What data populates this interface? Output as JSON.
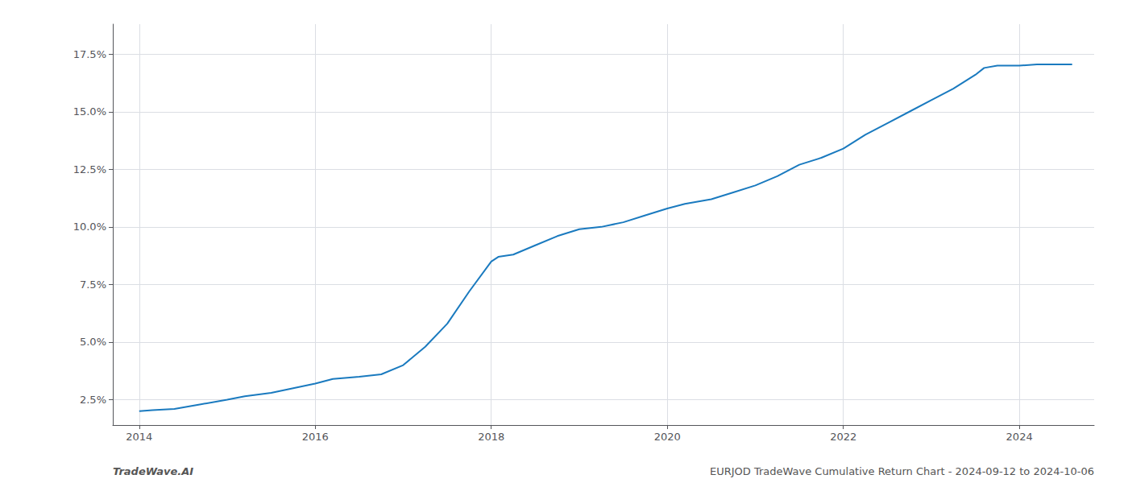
{
  "chart_data": {
    "type": "line",
    "x": [
      2014.0,
      2014.15,
      2014.4,
      2014.7,
      2015.0,
      2015.2,
      2015.5,
      2015.75,
      2016.0,
      2016.2,
      2016.5,
      2016.75,
      2017.0,
      2017.25,
      2017.5,
      2017.75,
      2018.0,
      2018.08,
      2018.25,
      2018.5,
      2018.75,
      2019.0,
      2019.25,
      2019.5,
      2019.75,
      2020.0,
      2020.2,
      2020.5,
      2020.75,
      2021.0,
      2021.25,
      2021.5,
      2021.75,
      2022.0,
      2022.25,
      2022.5,
      2022.75,
      2023.0,
      2023.25,
      2023.5,
      2023.6,
      2023.75,
      2024.0,
      2024.2,
      2024.4,
      2024.6
    ],
    "values": [
      2.0,
      2.05,
      2.1,
      2.3,
      2.5,
      2.65,
      2.8,
      3.0,
      3.2,
      3.4,
      3.5,
      3.6,
      4.0,
      4.8,
      5.8,
      7.2,
      8.5,
      8.7,
      8.8,
      9.2,
      9.6,
      9.9,
      10.0,
      10.2,
      10.5,
      10.8,
      11.0,
      11.2,
      11.5,
      11.8,
      12.2,
      12.7,
      13.0,
      13.4,
      14.0,
      14.5,
      15.0,
      15.5,
      16.0,
      16.6,
      16.9,
      17.0,
      17.0,
      17.05,
      17.05,
      17.05
    ],
    "color": "#1a7abf",
    "xlim": [
      2013.7,
      2024.85
    ],
    "xticks": [
      2014,
      2016,
      2018,
      2020,
      2022,
      2024
    ],
    "ylim": [
      1.4,
      18.8
    ],
    "yticks": [
      {
        "value": 2.5,
        "label": "2.5%"
      },
      {
        "value": 5.0,
        "label": "5.0%"
      },
      {
        "value": 7.5,
        "label": "7.5%"
      },
      {
        "value": 10.0,
        "label": "10.0%"
      },
      {
        "value": 12.5,
        "label": "12.5%"
      },
      {
        "value": 15.0,
        "label": "15.0%"
      },
      {
        "value": 17.5,
        "label": "17.5%"
      }
    ],
    "grid": true,
    "annotations": [
      "TradeWave.AI",
      "EURJOD TradeWave Cumulative Return Chart - 2024-09-12 to 2024-10-06"
    ]
  }
}
